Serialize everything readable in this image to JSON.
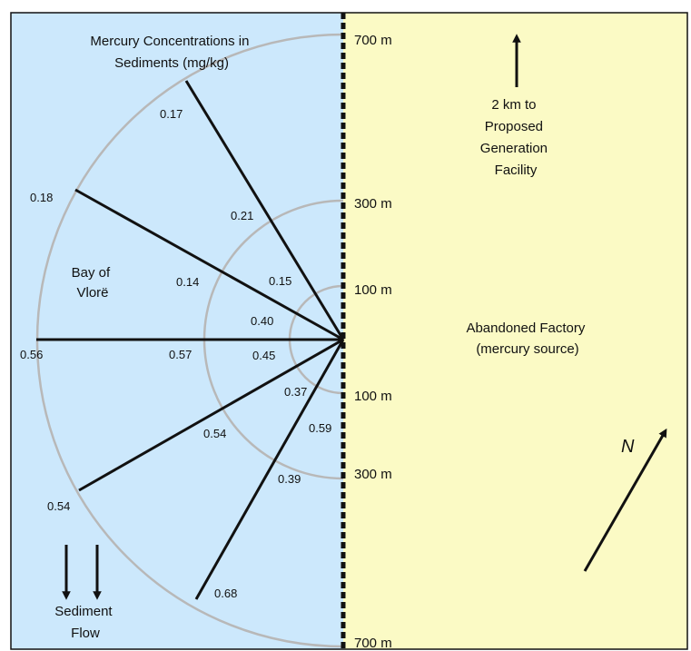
{
  "colors": {
    "water": "#cce8fc",
    "land": "#fbfac5",
    "ring": "#b8b8b8",
    "ink": "#111111"
  },
  "title": [
    "Mercury Concentrations in",
    "Sediments (mg/kg)"
  ],
  "distance_labels": {
    "north": [
      "700 m",
      "300 m",
      "100 m"
    ],
    "south": [
      "100 m",
      "300 m",
      "700 m"
    ]
  },
  "concentrations": {
    "ring_700": [
      "0.17",
      "0.18",
      "0.56",
      "0.54",
      "0.68"
    ],
    "ring_300": [
      "0.21",
      "0.14",
      "0.57",
      "0.54",
      "0.39"
    ],
    "ring_100": [
      "0.15",
      "0.40",
      "0.45",
      "0.37",
      "0.59"
    ]
  },
  "bay_label": [
    "Bay of",
    "Vlorë"
  ],
  "factory_label": [
    "Abandoned Factory",
    "(mercury source)"
  ],
  "facility_label": [
    "2 km to",
    "Proposed",
    "Generation",
    "Facility"
  ],
  "sediment_label": [
    "Sediment",
    "Flow"
  ],
  "north_label": "N"
}
